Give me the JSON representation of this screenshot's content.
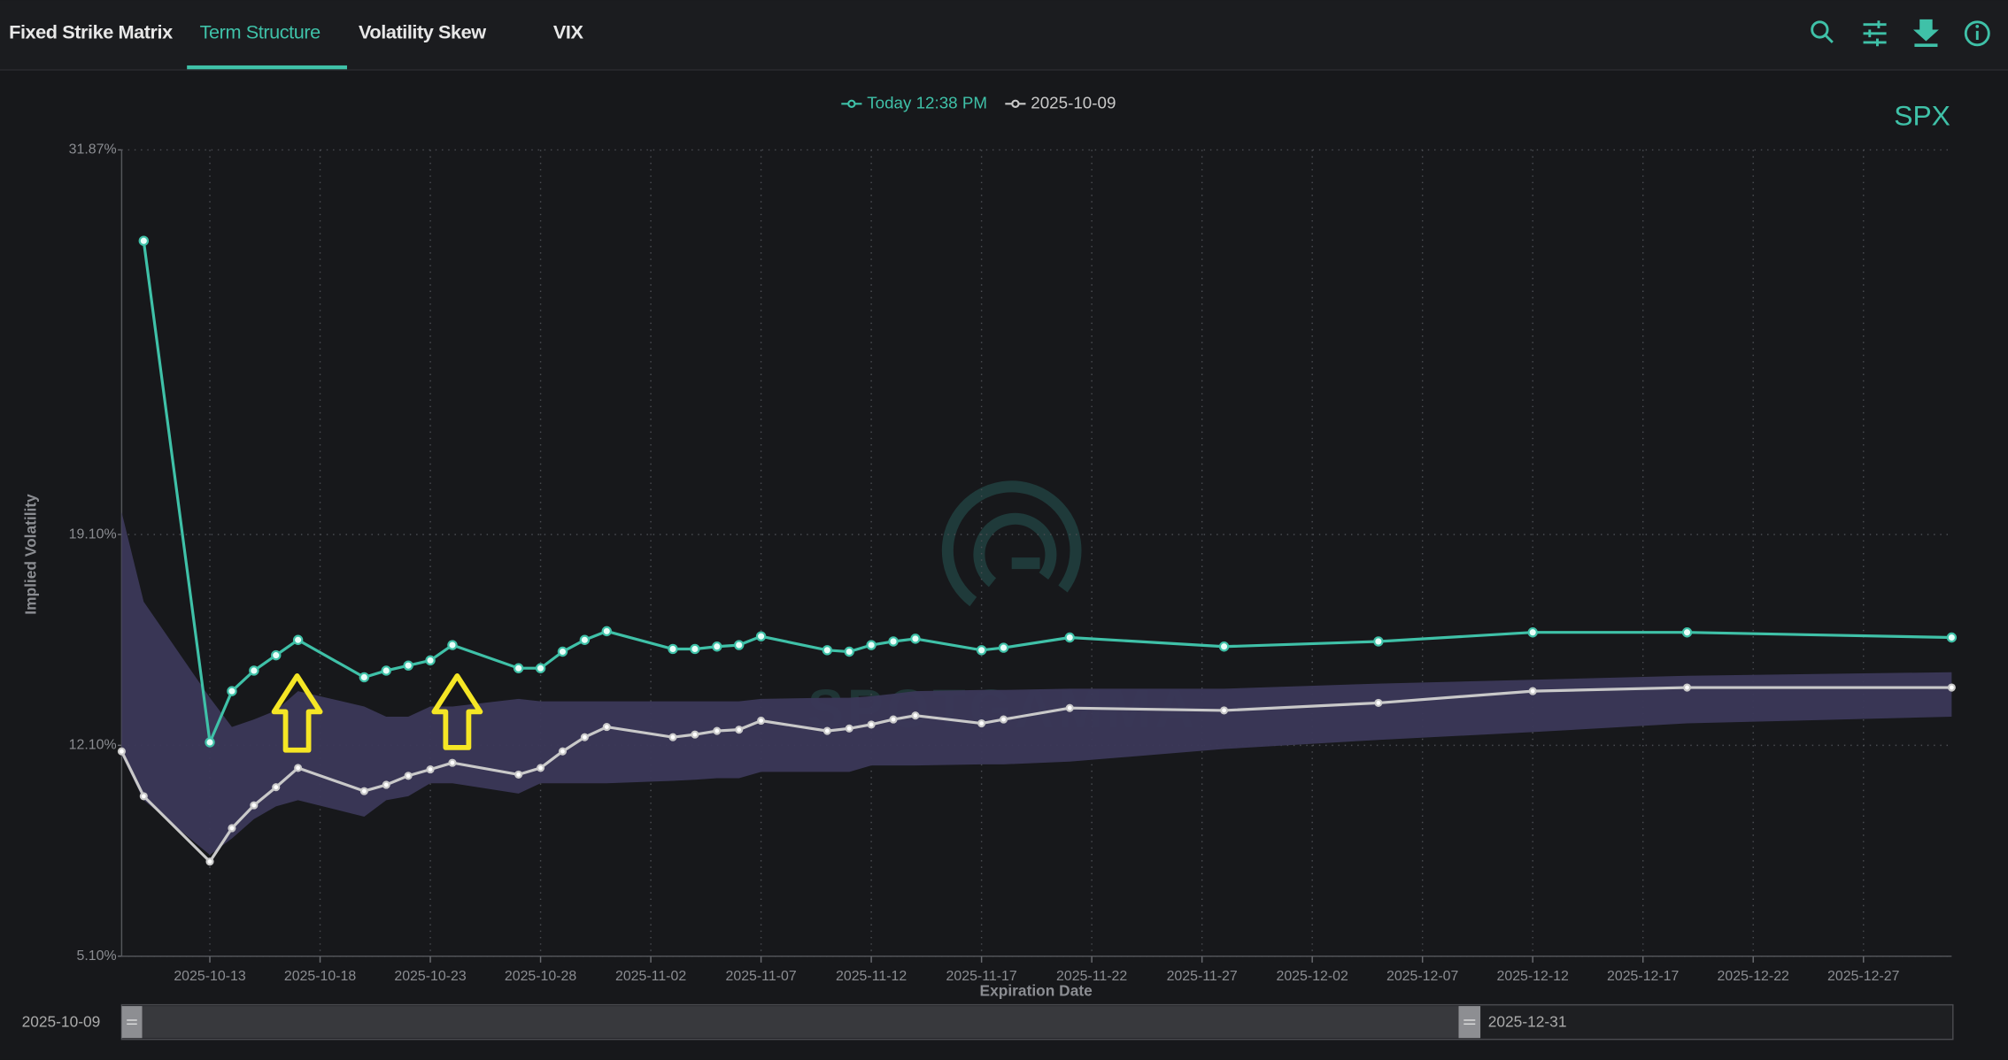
{
  "tabs": [
    "Fixed Strike Matrix",
    "Term Structure",
    "Volatility Skew",
    "VIX"
  ],
  "active_tab": 1,
  "chart_data": {
    "type": "line",
    "symbol": "SPX",
    "watermark": "SPOTGAMMA",
    "x_label": "Expiration Date",
    "y_label": "Implied Volatility",
    "x": [
      "2025-10-09",
      "2025-10-10",
      "2025-10-13",
      "2025-10-14",
      "2025-10-15",
      "2025-10-16",
      "2025-10-17",
      "2025-10-20",
      "2025-10-21",
      "2025-10-22",
      "2025-10-23",
      "2025-10-24",
      "2025-10-27",
      "2025-10-28",
      "2025-10-29",
      "2025-10-30",
      "2025-10-31",
      "2025-11-03",
      "2025-11-04",
      "2025-11-05",
      "2025-11-06",
      "2025-11-07",
      "2025-11-10",
      "2025-11-11",
      "2025-11-12",
      "2025-11-13",
      "2025-11-14",
      "2025-11-17",
      "2025-11-18",
      "2025-11-21",
      "2025-11-28",
      "2025-12-05",
      "2025-12-12",
      "2025-12-19",
      "2025-12-31"
    ],
    "series": [
      {
        "name": "Today 12:38 PM",
        "color": "#3fc1a8",
        "values": [
          null,
          28.85,
          12.2,
          13.9,
          14.58,
          15.09,
          15.6,
          14.36,
          14.58,
          14.75,
          14.92,
          15.43,
          14.66,
          14.66,
          15.21,
          15.6,
          15.89,
          15.3,
          15.3,
          15.38,
          15.43,
          15.72,
          15.26,
          15.21,
          15.43,
          15.55,
          15.64,
          15.26,
          15.34,
          15.68,
          15.38,
          15.55,
          15.85,
          15.85,
          15.68
        ]
      },
      {
        "name": "2025-10-09",
        "color": "#c9c9c9",
        "values": [
          11.9,
          10.41,
          8.24,
          9.35,
          10.11,
          10.71,
          11.35,
          10.58,
          10.79,
          11.09,
          11.3,
          11.52,
          11.13,
          11.35,
          11.9,
          12.37,
          12.71,
          12.37,
          12.46,
          12.58,
          12.62,
          12.92,
          12.58,
          12.66,
          12.79,
          12.96,
          13.09,
          12.83,
          12.96,
          13.34,
          13.26,
          13.51,
          13.9,
          14.02,
          14.02
        ]
      }
    ],
    "band": {
      "color": "#3b3858",
      "upper": [
        19.84,
        16.87,
        13.68,
        12.71,
        12.96,
        13.26,
        13.9,
        13.39,
        13.05,
        13.05,
        13.39,
        13.39,
        13.64,
        13.56,
        13.56,
        13.56,
        13.56,
        13.56,
        13.56,
        13.56,
        13.56,
        13.64,
        13.68,
        13.68,
        13.73,
        13.81,
        13.9,
        13.94,
        13.94,
        13.98,
        13.98,
        14.15,
        14.28,
        14.41,
        14.53
      ],
      "lower": [
        11.77,
        10.28,
        8.46,
        9.01,
        9.65,
        10.07,
        10.28,
        9.73,
        10.28,
        10.41,
        10.84,
        10.84,
        10.5,
        10.84,
        10.84,
        10.84,
        10.84,
        10.92,
        10.96,
        11.01,
        11.01,
        11.22,
        11.22,
        11.22,
        11.43,
        11.43,
        11.43,
        11.47,
        11.47,
        11.56,
        11.98,
        12.28,
        12.54,
        12.83,
        13.05
      ]
    },
    "xlim": [
      "2025-10-09",
      "2025-12-31"
    ],
    "xticks": [
      "2025-10-13",
      "2025-10-18",
      "2025-10-23",
      "2025-10-28",
      "2025-11-02",
      "2025-11-07",
      "2025-11-12",
      "2025-11-17",
      "2025-11-22",
      "2025-11-27",
      "2025-12-02",
      "2025-12-07",
      "2025-12-12",
      "2025-12-17",
      "2025-12-22",
      "2025-12-27"
    ],
    "ylim": [
      5.1,
      31.87
    ],
    "yticks": [
      {
        "value": 5.1,
        "label": "5.10%"
      },
      {
        "value": 12.1,
        "label": "12.10%"
      },
      {
        "value": 19.1,
        "label": "19.10%"
      },
      {
        "value": 31.87,
        "label": "31.87%"
      }
    ],
    "grid": true
  },
  "range_slider": {
    "start": "2025-10-09",
    "end": "2025-12-31"
  }
}
